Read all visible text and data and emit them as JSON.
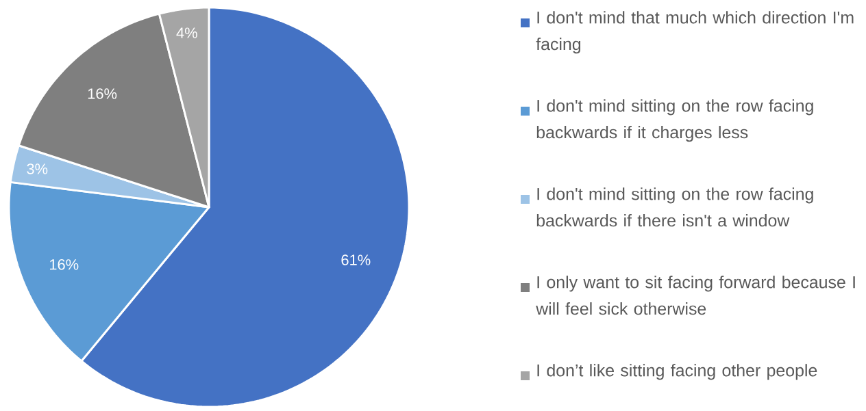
{
  "chart_data": {
    "type": "pie",
    "categories": [
      "I don't mind that much which direction I'm facing",
      "I don't mind sitting on the row facing backwards if it charges less",
      "I don't mind sitting on the row facing backwards if there isn't a window",
      "I only want to sit facing forward because I will feel sick otherwise",
      "I don’t like sitting facing other people"
    ],
    "values": [
      61,
      16,
      3,
      16,
      4
    ],
    "value_labels": [
      "61%",
      "16%",
      "3%",
      "16%",
      "4%"
    ],
    "colors": [
      "#4472c4",
      "#5b9bd5",
      "#9dc3e6",
      "#7f7f7f",
      "#a5a5a5"
    ],
    "legend": "right"
  }
}
